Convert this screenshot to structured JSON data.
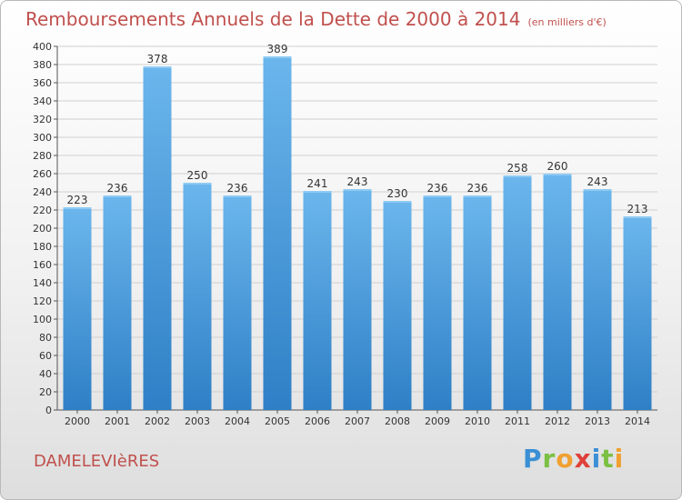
{
  "title": "Remboursements Annuels de la Dette de 2000 à 2014",
  "subtitle": "(en milliers d'€)",
  "commune": "DAMELEVIèRES",
  "logo": {
    "letters": [
      "P",
      "r",
      "o",
      "x",
      "i",
      "t",
      "i"
    ]
  },
  "colors": {
    "title": "#c0504d",
    "bar": "#4a9fe0",
    "bar_light": "#6bb6ec",
    "bar_dark": "#2e7fc6",
    "grid": "#d0d0d0"
  },
  "chart_data": {
    "type": "bar",
    "categories": [
      "2000",
      "2001",
      "2002",
      "2003",
      "2004",
      "2005",
      "2006",
      "2007",
      "2008",
      "2009",
      "2010",
      "2011",
      "2012",
      "2013",
      "2014"
    ],
    "values": [
      223,
      236,
      378,
      250,
      236,
      389,
      241,
      243,
      230,
      236,
      236,
      258,
      260,
      243,
      213
    ],
    "yticks": [
      0,
      20,
      40,
      60,
      80,
      100,
      120,
      140,
      160,
      180,
      200,
      220,
      240,
      260,
      280,
      300,
      320,
      340,
      360,
      380,
      400
    ],
    "ylim": [
      0,
      400
    ],
    "grid": true,
    "data_labels": true
  }
}
